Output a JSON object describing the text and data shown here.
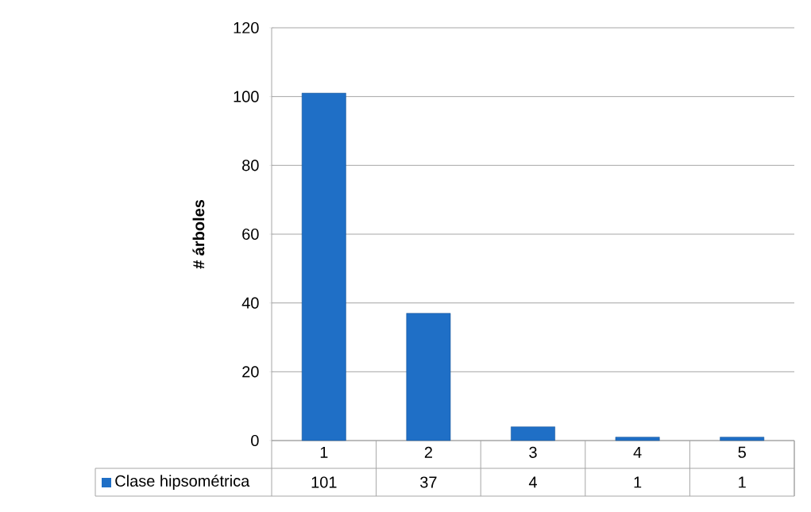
{
  "chart_data": {
    "type": "bar",
    "ylabel": "# árboles",
    "categories": [
      "1",
      "2",
      "3",
      "4",
      "5"
    ],
    "series": [
      {
        "name": "Clase hipsométrica",
        "color": "#1f6fc6",
        "values": [
          101,
          37,
          4,
          1,
          1
        ]
      }
    ],
    "ylim": [
      0,
      120
    ],
    "yticks": [
      0,
      20,
      40,
      60,
      80,
      100,
      120
    ],
    "grid": "y",
    "legend": "bottom",
    "data_labels": true
  }
}
